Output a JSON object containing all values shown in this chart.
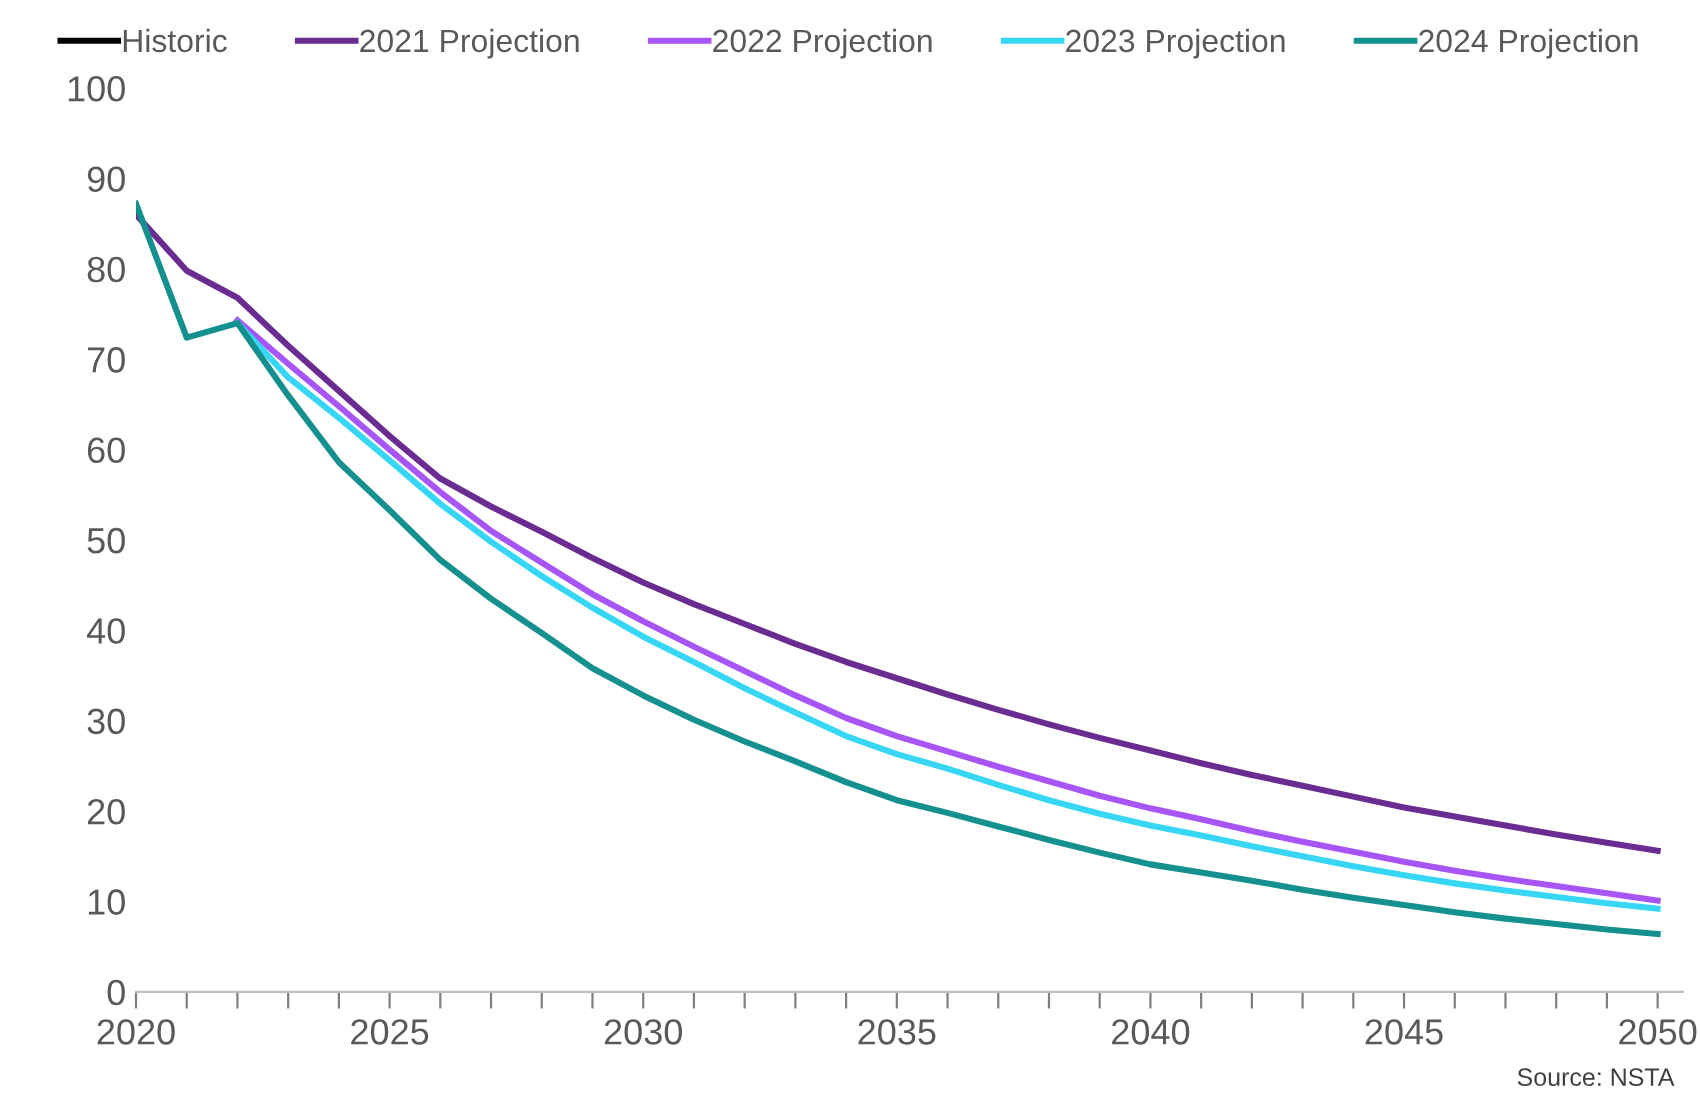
{
  "chart_data": {
    "type": "line",
    "x": [
      2020,
      2021,
      2022,
      2023,
      2024,
      2025,
      2026,
      2027,
      2028,
      2029,
      2030,
      2031,
      2032,
      2033,
      2034,
      2035,
      2036,
      2037,
      2038,
      2039,
      2040,
      2041,
      2042,
      2043,
      2044,
      2045,
      2046,
      2047,
      2048,
      2049,
      2050
    ],
    "series": [
      {
        "name": "Historic",
        "color": "#000000",
        "values": [
          null,
          null,
          null,
          null,
          null,
          null,
          null,
          null,
          null,
          null,
          null,
          null,
          null,
          null,
          null,
          null,
          null,
          null,
          null,
          null,
          null,
          null,
          null,
          null,
          null,
          null,
          null,
          null,
          null,
          null,
          null
        ]
      },
      {
        "name": "2021 Projection",
        "color": "#6a2c91",
        "values": [
          86,
          79.8,
          76.8,
          71.5,
          66.5,
          61.5,
          56.8,
          53.7,
          50.9,
          48,
          45.3,
          42.9,
          40.7,
          38.5,
          36.5,
          34.7,
          32.9,
          31.2,
          29.6,
          28.1,
          26.7,
          25.3,
          24,
          22.8,
          21.6,
          20.4,
          19.4,
          18.4,
          17.4,
          16.5,
          15.6
        ]
      },
      {
        "name": "2022 Projection",
        "color": "#a855f7",
        "x": [
          2022,
          2023,
          2024,
          2025,
          2026,
          2027,
          2028,
          2029,
          2030,
          2031,
          2032,
          2033,
          2034,
          2035,
          2036,
          2037,
          2038,
          2039,
          2040,
          2041,
          2042,
          2043,
          2044,
          2045,
          2046,
          2047,
          2048,
          2049,
          2050
        ],
        "values": [
          74.3,
          69.5,
          64.8,
          60,
          55.3,
          51,
          47.5,
          44,
          41,
          38.2,
          35.5,
          32.8,
          30.3,
          28.3,
          26.6,
          24.9,
          23.3,
          21.7,
          20.3,
          19.1,
          17.8,
          16.6,
          15.5,
          14.4,
          13.4,
          12.5,
          11.7,
          10.9,
          10.1
        ]
      },
      {
        "name": "2023 Projection",
        "color": "#38d6f5",
        "x": [
          2022,
          2023,
          2024,
          2025,
          2026,
          2027,
          2028,
          2029,
          2030,
          2031,
          2032,
          2033,
          2034,
          2035,
          2036,
          2037,
          2038,
          2039,
          2040,
          2041,
          2042,
          2043,
          2044,
          2045,
          2046,
          2047,
          2048,
          2049,
          2050
        ],
        "values": [
          74,
          68,
          63.5,
          58.8,
          54,
          49.8,
          46,
          42.5,
          39.3,
          36.5,
          33.6,
          30.9,
          28.3,
          26.3,
          24.7,
          22.9,
          21.2,
          19.7,
          18.4,
          17.3,
          16.1,
          15,
          13.9,
          12.9,
          12,
          11.2,
          10.5,
          9.8,
          9.2
        ]
      },
      {
        "name": "2024 Projection",
        "color": "#14908f",
        "values": [
          87.2,
          72.4,
          74,
          66,
          58.6,
          53.3,
          47.8,
          43.5,
          39.7,
          35.8,
          32.8,
          30.1,
          27.7,
          25.5,
          23.2,
          21.2,
          19.8,
          18.3,
          16.8,
          15.4,
          14.1,
          13.2,
          12.3,
          11.3,
          10.4,
          9.6,
          8.8,
          8.1,
          7.5,
          6.9,
          6.4
        ]
      }
    ],
    "xlim": [
      2020,
      2050.5
    ],
    "xticks": [
      2020,
      {
        "value": 2021,
        "label": null
      },
      {
        "value": 2022,
        "label": null
      },
      {
        "value": 2023,
        "label": null
      },
      {
        "value": 2024,
        "label": null
      },
      2025,
      {
        "value": 2026,
        "label": null
      },
      {
        "value": 2027,
        "label": null
      },
      {
        "value": 2028,
        "label": null
      },
      {
        "value": 2029,
        "label": null
      },
      2030,
      {
        "value": 2031,
        "label": null
      },
      {
        "value": 2032,
        "label": null
      },
      {
        "value": 2033,
        "label": null
      },
      {
        "value": 2034,
        "label": null
      },
      2035,
      {
        "value": 2036,
        "label": null
      },
      {
        "value": 2037,
        "label": null
      },
      {
        "value": 2038,
        "label": null
      },
      {
        "value": 2039,
        "label": null
      },
      2040,
      {
        "value": 2041,
        "label": null
      },
      {
        "value": 2042,
        "label": null
      },
      {
        "value": 2043,
        "label": null
      },
      {
        "value": 2044,
        "label": null
      },
      2045,
      {
        "value": 2046,
        "label": null
      },
      {
        "value": 2047,
        "label": null
      },
      {
        "value": 2048,
        "label": null
      },
      {
        "value": 2049,
        "label": null
      },
      2050
    ],
    "ylim": [
      0,
      100
    ],
    "yticks": [
      0,
      10,
      20,
      30,
      40,
      50,
      60,
      70,
      80,
      90,
      100
    ],
    "grid": false,
    "legend": "top",
    "marker": "none",
    "line_style": "solid",
    "annotations": [
      "Source: NSTA"
    ]
  }
}
